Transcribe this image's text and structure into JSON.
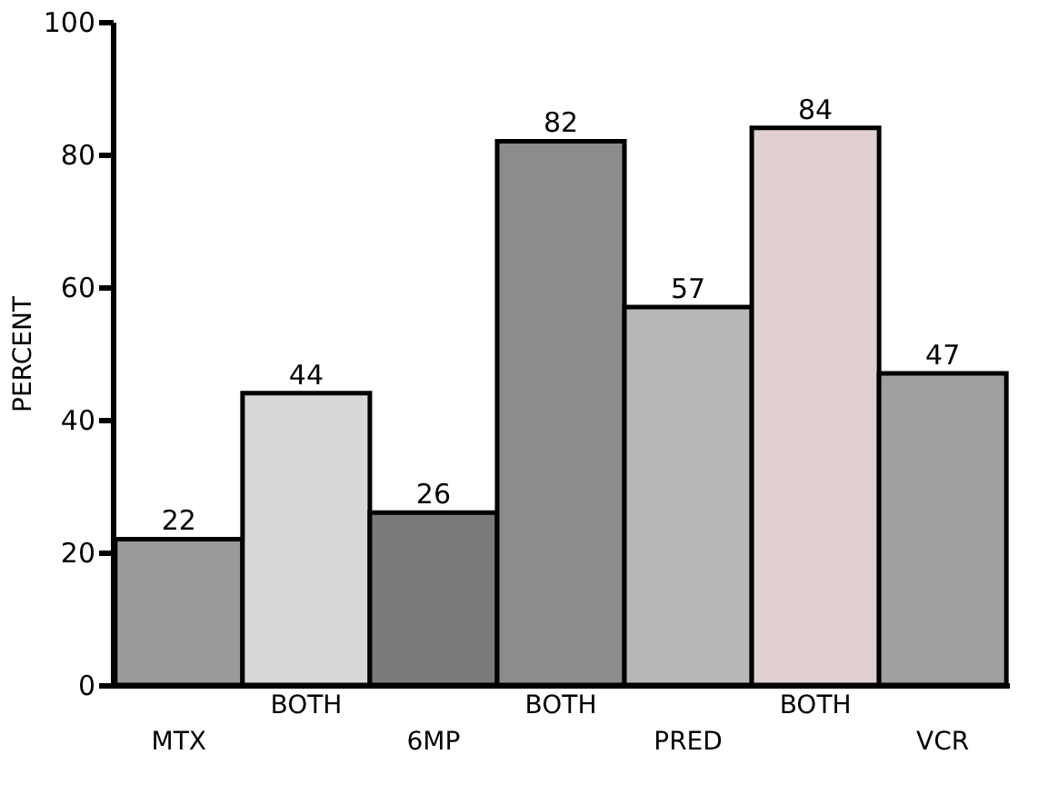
{
  "chart_data": {
    "type": "bar",
    "ylabel": "PERCENT",
    "categories": [
      "MTX",
      "BOTH",
      "6MP",
      "BOTH",
      "PRED",
      "BOTH",
      "VCR"
    ],
    "values": [
      22,
      44,
      26,
      82,
      57,
      84,
      47
    ],
    "colors": [
      "#9a9a9a",
      "#d8d8d8",
      "#7a7a7a",
      "#8c8c8c",
      "#b8b8b8",
      "#e0d0d0",
      "#a0a0a0"
    ],
    "ylim": [
      0,
      100
    ],
    "yticks": [
      0,
      20,
      40,
      60,
      80,
      100
    ],
    "data_labels": true,
    "grid": false
  }
}
